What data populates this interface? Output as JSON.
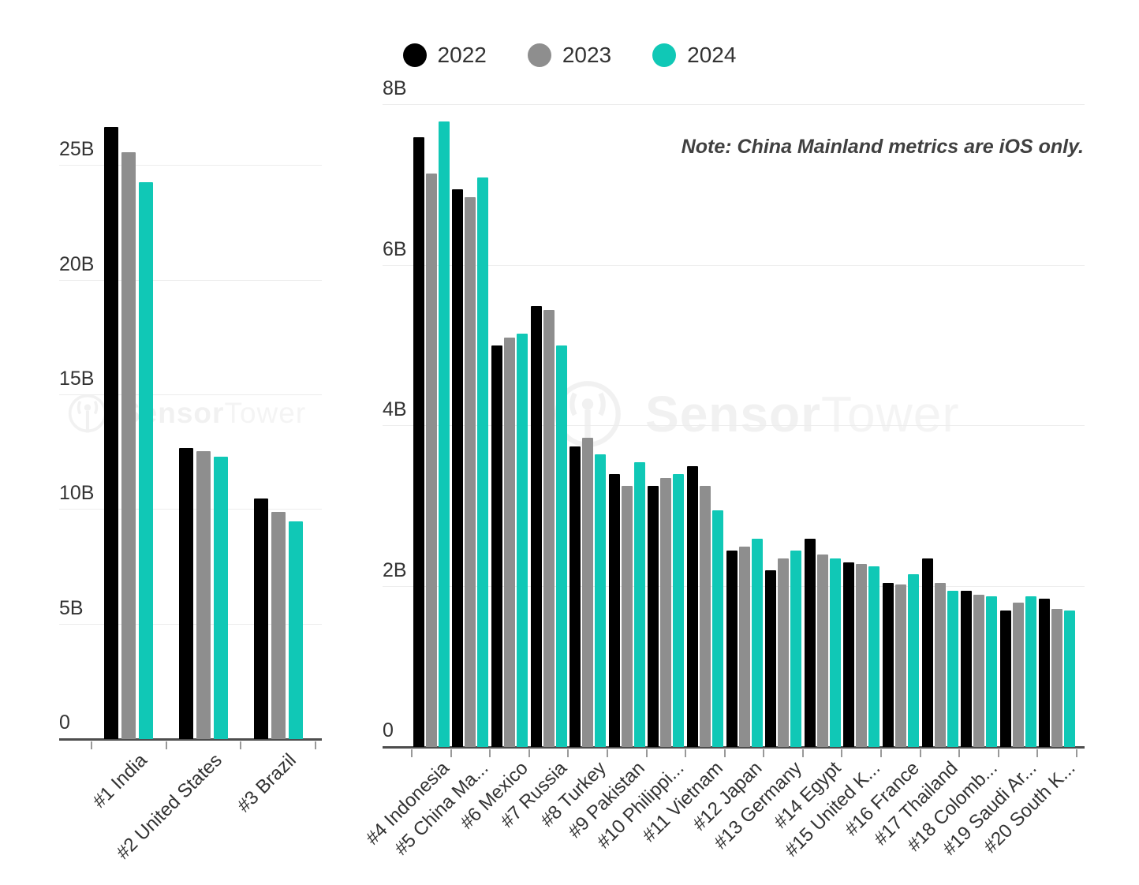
{
  "legend": {
    "items": [
      {
        "label": "2022",
        "color": "#000000"
      },
      {
        "label": "2023",
        "color": "#8e8e8e"
      },
      {
        "label": "2024",
        "color": "#10c8b6"
      }
    ]
  },
  "note": {
    "text": "Note: China Mainland metrics are iOS only."
  },
  "watermark": {
    "brand_bold": "Sensor",
    "brand_light": "Tower"
  },
  "colors": {
    "series_2022": "#000000",
    "series_2023": "#8e8e8e",
    "series_2024": "#10c8b6",
    "gridline": "#ededed",
    "axis_line": "#4d4d4d",
    "axis_label": "#333333",
    "note_text": "#404040",
    "watermark": "#f1f1f1",
    "background": "#ffffff"
  },
  "chart_data": [
    {
      "id": "downloads-top-3",
      "type": "bar",
      "unit": "B",
      "title": "",
      "xlabel": "",
      "ylabel": "",
      "grid": true,
      "legend_position": "top",
      "ylim": [
        0,
        28.1
      ],
      "yticks": {
        "values": [
          0,
          5,
          10,
          15,
          20,
          25
        ],
        "labels": [
          "0",
          "5B",
          "10B",
          "15B",
          "20B",
          "25B"
        ]
      },
      "categories": [
        "#1 India",
        "#2 United States",
        "#3 Brazil"
      ],
      "series": [
        {
          "name": "2022",
          "color": "#000000",
          "values": [
            26.7,
            12.7,
            10.5
          ]
        },
        {
          "name": "2023",
          "color": "#8e8e8e",
          "values": [
            25.6,
            12.55,
            9.9
          ]
        },
        {
          "name": "2024",
          "color": "#10c8b6",
          "values": [
            24.3,
            12.3,
            9.5
          ]
        }
      ]
    },
    {
      "id": "downloads-rank-4-to-20",
      "type": "bar",
      "unit": "B",
      "title": "",
      "xlabel": "",
      "ylabel": "",
      "grid": true,
      "legend_position": "top",
      "ylim": [
        0,
        8.14
      ],
      "yticks": {
        "values": [
          0,
          2,
          4,
          6,
          8
        ],
        "labels": [
          "0",
          "2B",
          "4B",
          "6B",
          "8B"
        ]
      },
      "categories": [
        "#4 Indonesia",
        "#5 China Ma...",
        "#6 Mexico",
        "#7 Russia",
        "#8 Turkey",
        "#9 Pakistan",
        "#10 Philippi...",
        "#11 Vietnam",
        "#12 Japan",
        "#13 Germany",
        "#14 Egypt",
        "#15 United K...",
        "#16 France",
        "#17 Thailand",
        "#18 Colomb...",
        "#19 Saudi Ar...",
        "#20 South K..."
      ],
      "series": [
        {
          "name": "2022",
          "color": "#000000",
          "values": [
            7.6,
            6.95,
            5.0,
            5.5,
            3.75,
            3.4,
            3.25,
            3.5,
            2.45,
            2.2,
            2.6,
            2.3,
            2.05,
            2.35,
            1.95,
            1.7,
            1.85
          ]
        },
        {
          "name": "2023",
          "color": "#8e8e8e",
          "values": [
            7.15,
            6.85,
            5.1,
            5.45,
            3.85,
            3.25,
            3.35,
            3.25,
            2.5,
            2.35,
            2.4,
            2.28,
            2.03,
            2.05,
            1.9,
            1.8,
            1.72
          ]
        },
        {
          "name": "2024",
          "color": "#10c8b6",
          "values": [
            7.8,
            7.1,
            5.15,
            5.0,
            3.65,
            3.55,
            3.4,
            2.95,
            2.6,
            2.45,
            2.35,
            2.25,
            2.15,
            1.95,
            1.88,
            1.88,
            1.7
          ]
        }
      ]
    }
  ]
}
